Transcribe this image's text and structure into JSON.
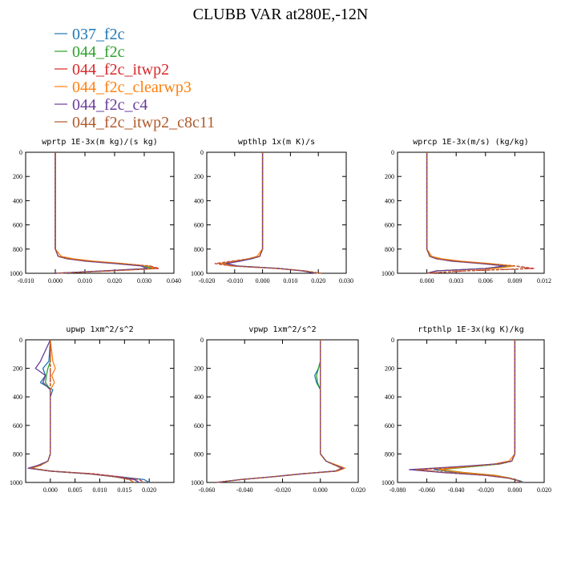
{
  "figure": {
    "title": "CLUBB VAR at280E,-12N",
    "legend": {
      "placement": "top-left",
      "entries": [
        {
          "label": "037_f2c",
          "color": "#1f77b4"
        },
        {
          "label": "044_f2c",
          "color": "#2ca02c"
        },
        {
          "label": "044_f2c_itwp2",
          "color": "#d62728"
        },
        {
          "label": "044_f2c_clearwp3",
          "color": "#ff7f0e"
        },
        {
          "label": "044_f2c_c4",
          "color": "#6a3d9a"
        },
        {
          "label": "044_f2c_itwp2_c8c11",
          "color": "#b05a2c"
        }
      ]
    }
  },
  "chart_data": [
    {
      "type": "line",
      "title": "wprtp  1E-3x(m kg)/(s kg)",
      "xlim": [
        -0.01,
        0.04
      ],
      "ylim": [
        0,
        1000
      ],
      "y_inverted": true,
      "xticks": [
        "-0.010",
        "0.000",
        "0.010",
        "0.020",
        "0.030",
        "0.040"
      ],
      "yticks": [
        "0",
        "200",
        "400",
        "600",
        "800",
        "1000"
      ],
      "y": [
        0,
        200,
        400,
        600,
        800,
        860,
        880,
        900,
        920,
        940,
        960,
        980,
        1000
      ],
      "series": [
        {
          "values": [
            0.0,
            0.0,
            0.0,
            0.0,
            0.0,
            0.001,
            0.005,
            0.012,
            0.022,
            0.031,
            0.033,
            0.018,
            0.0
          ]
        },
        {
          "values": [
            0.0,
            0.0,
            0.0,
            0.0,
            0.0,
            0.001,
            0.004,
            0.011,
            0.021,
            0.03,
            0.032,
            0.017,
            0.0
          ]
        },
        {
          "values": [
            0.0,
            0.0,
            0.0,
            0.0,
            0.0,
            0.001,
            0.004,
            0.011,
            0.022,
            0.032,
            0.035,
            0.019,
            0.0
          ]
        },
        {
          "values": [
            0.0,
            0.0,
            0.0,
            0.0,
            0.0,
            0.002,
            0.006,
            0.013,
            0.023,
            0.031,
            0.034,
            0.018,
            0.0
          ]
        },
        {
          "values": [
            0.0,
            0.0,
            0.0,
            0.0,
            0.0,
            0.001,
            0.004,
            0.01,
            0.02,
            0.029,
            0.031,
            0.016,
            0.0
          ]
        },
        {
          "values": [
            0.0,
            0.0,
            0.0,
            0.0,
            0.0,
            0.001,
            0.004,
            0.011,
            0.022,
            0.032,
            0.034,
            0.018,
            0.0
          ]
        }
      ]
    },
    {
      "type": "line",
      "title": "wpthlp  1x(m K)/s",
      "xlim": [
        -0.02,
        0.03
      ],
      "ylim": [
        0,
        1000
      ],
      "y_inverted": true,
      "xticks": [
        "-0.020",
        "-0.010",
        "0.000",
        "0.010",
        "0.020",
        "0.030"
      ],
      "yticks": [
        "0",
        "200",
        "400",
        "600",
        "800",
        "1000"
      ],
      "y": [
        0,
        200,
        400,
        600,
        800,
        860,
        880,
        900,
        920,
        940,
        960,
        980,
        1000
      ],
      "series": [
        {
          "values": [
            0.0,
            0.0,
            0.0,
            0.0,
            0.0,
            -0.001,
            -0.004,
            -0.009,
            -0.014,
            -0.01,
            0.006,
            0.015,
            0.02
          ]
        },
        {
          "values": [
            0.0,
            0.0,
            0.0,
            0.0,
            0.0,
            -0.001,
            -0.004,
            -0.009,
            -0.013,
            -0.009,
            0.006,
            0.015,
            0.02
          ]
        },
        {
          "values": [
            0.0,
            0.0,
            0.0,
            0.0,
            0.0,
            -0.001,
            -0.005,
            -0.011,
            -0.017,
            -0.011,
            0.005,
            0.015,
            0.021
          ]
        },
        {
          "values": [
            0.0,
            0.0,
            0.0,
            0.0,
            0.0,
            -0.002,
            -0.005,
            -0.01,
            -0.015,
            -0.01,
            0.006,
            0.015,
            0.02
          ]
        },
        {
          "values": [
            0.0,
            0.0,
            0.0,
            0.0,
            0.0,
            -0.001,
            -0.004,
            -0.008,
            -0.013,
            -0.009,
            0.006,
            0.014,
            0.019
          ]
        },
        {
          "values": [
            0.0,
            0.0,
            0.0,
            0.0,
            0.0,
            -0.001,
            -0.005,
            -0.01,
            -0.016,
            -0.011,
            0.005,
            0.015,
            0.021
          ]
        }
      ]
    },
    {
      "type": "line",
      "title": "wprcp  1E-3x(m/s) (kg/kg)",
      "xlim": [
        -0.003,
        0.012
      ],
      "ylim": [
        0,
        1000
      ],
      "y_inverted": true,
      "xticks": [
        "0.000",
        "0.003",
        "0.006",
        "0.009",
        "0.012"
      ],
      "yticks": [
        "0",
        "200",
        "400",
        "600",
        "800",
        "1000"
      ],
      "y": [
        0,
        200,
        400,
        600,
        800,
        860,
        880,
        900,
        920,
        940,
        960,
        980,
        1000
      ],
      "series": [
        {
          "values": [
            0.0,
            0.0,
            0.0,
            0.0,
            0.0,
            0.0003,
            0.001,
            0.003,
            0.006,
            0.008,
            0.006,
            0.001,
            0.0
          ]
        },
        {
          "values": [
            0.0,
            0.0,
            0.0,
            0.0,
            0.0,
            0.0003,
            0.001,
            0.003,
            0.006,
            0.0085,
            0.006,
            0.001,
            0.0
          ]
        },
        {
          "values": [
            0.0,
            0.0,
            0.0,
            0.0,
            0.0,
            0.0003,
            0.001,
            0.003,
            0.006,
            0.009,
            0.011,
            0.004,
            0.0
          ]
        },
        {
          "values": [
            0.0,
            0.0,
            0.0,
            0.0,
            0.0,
            0.0005,
            0.0015,
            0.0035,
            0.0065,
            0.009,
            0.007,
            0.001,
            0.0
          ]
        },
        {
          "values": [
            0.0,
            0.0,
            0.0,
            0.0,
            0.0,
            0.0003,
            0.001,
            0.0025,
            0.0055,
            0.008,
            0.006,
            0.001,
            0.0
          ]
        },
        {
          "values": [
            0.0,
            0.0,
            0.0,
            0.0,
            0.0,
            0.0003,
            0.001,
            0.003,
            0.006,
            0.009,
            0.0105,
            0.004,
            0.0
          ]
        }
      ]
    },
    {
      "type": "line",
      "title": "upwp  1xm^2/s^2",
      "xlim": [
        -0.005,
        0.025
      ],
      "ylim": [
        0,
        1000
      ],
      "y_inverted": true,
      "xticks": [
        "0.000",
        "0.005",
        "0.010",
        "0.015",
        "0.020"
      ],
      "yticks": [
        "0",
        "200",
        "400",
        "600",
        "800",
        "1000"
      ],
      "y": [
        0,
        150,
        200,
        250,
        300,
        350,
        400,
        600,
        800,
        850,
        880,
        900,
        920,
        940,
        960,
        980,
        1000
      ],
      "series": [
        {
          "values": [
            0.0,
            -0.0003,
            -0.0015,
            -0.001,
            -0.002,
            0.0005,
            0.0,
            0.0,
            0.0,
            -0.0005,
            -0.002,
            -0.004,
            0.0,
            0.008,
            0.014,
            0.019,
            0.02
          ]
        },
        {
          "values": [
            0.0,
            0.0,
            -0.0005,
            -0.0008,
            -0.001,
            0.0,
            0.0,
            0.0,
            0.0,
            -0.0005,
            -0.002,
            -0.004,
            0.0,
            0.008,
            0.013,
            0.017,
            0.018
          ]
        },
        {
          "values": [
            0.0,
            0.0,
            0.0,
            0.0,
            0.0,
            0.0,
            0.0,
            0.0,
            0.0,
            -0.0005,
            -0.002,
            -0.004,
            0.0,
            0.009,
            0.014,
            0.018,
            0.019
          ]
        },
        {
          "values": [
            0.0,
            0.0005,
            0.001,
            0.0003,
            0.0008,
            0.0,
            0.0,
            0.0,
            0.0,
            -0.0005,
            -0.002,
            -0.004,
            0.0,
            0.008,
            0.013,
            0.016,
            0.017
          ]
        },
        {
          "values": [
            0.0,
            -0.002,
            -0.003,
            -0.001,
            -0.0015,
            0.0,
            0.0,
            0.0,
            0.0,
            -0.0005,
            -0.0025,
            -0.0045,
            0.0,
            0.008,
            0.013,
            0.017,
            0.018
          ]
        },
        {
          "values": [
            0.0,
            0.0,
            0.0,
            0.0,
            0.0,
            0.0,
            0.0,
            0.0,
            0.0,
            -0.0005,
            -0.002,
            -0.004,
            0.0,
            0.008,
            0.013,
            0.016,
            0.017
          ]
        }
      ]
    },
    {
      "type": "line",
      "title": "vpwp  1xm^2/s^2",
      "xlim": [
        -0.06,
        0.02
      ],
      "ylim": [
        0,
        1000
      ],
      "y_inverted": true,
      "xticks": [
        "-0.060",
        "-0.040",
        "-0.020",
        "0.000",
        "0.020"
      ],
      "yticks": [
        "0",
        "200",
        "400",
        "600",
        "800",
        "1000"
      ],
      "y": [
        0,
        150,
        200,
        250,
        300,
        350,
        400,
        600,
        800,
        850,
        880,
        900,
        920,
        940,
        960,
        980,
        1000
      ],
      "series": [
        {
          "values": [
            0.0,
            0.0,
            -0.001,
            -0.003,
            -0.002,
            0.0,
            0.0,
            0.0,
            0.0,
            0.003,
            0.008,
            0.012,
            0.008,
            -0.01,
            -0.025,
            -0.042,
            -0.055
          ]
        },
        {
          "values": [
            0.0,
            0.0,
            -0.001,
            -0.002,
            -0.0015,
            0.0,
            0.0,
            0.0,
            0.0,
            0.003,
            0.008,
            0.012,
            0.008,
            -0.01,
            -0.025,
            -0.042,
            -0.055
          ]
        },
        {
          "values": [
            0.0,
            0.0,
            0.0,
            0.0,
            0.0,
            0.0,
            0.0,
            0.0,
            0.0,
            0.003,
            0.008,
            0.011,
            0.008,
            -0.01,
            -0.025,
            -0.042,
            -0.055
          ]
        },
        {
          "values": [
            0.0,
            0.0,
            0.0,
            0.0,
            0.0,
            0.0,
            0.0,
            0.0,
            0.0,
            0.003,
            0.009,
            0.013,
            0.009,
            -0.01,
            -0.025,
            -0.042,
            -0.055
          ]
        },
        {
          "values": [
            0.0,
            0.0,
            0.0,
            0.0,
            0.0,
            0.0,
            0.0,
            0.0,
            0.0,
            0.003,
            0.008,
            0.012,
            0.008,
            -0.01,
            -0.025,
            -0.042,
            -0.055
          ]
        },
        {
          "values": [
            0.0,
            0.0,
            0.0,
            0.0,
            0.0,
            0.0,
            0.0,
            0.0,
            0.0,
            0.003,
            0.008,
            0.011,
            0.008,
            -0.01,
            -0.025,
            -0.042,
            -0.055
          ]
        }
      ]
    },
    {
      "type": "line",
      "title": "rtpthlp  1E-3x(kg K)/kg",
      "xlim": [
        -0.08,
        0.02
      ],
      "ylim": [
        0,
        1000
      ],
      "y_inverted": true,
      "xticks": [
        "-0.080",
        "-0.060",
        "-0.040",
        "-0.020",
        "0.000",
        "0.020"
      ],
      "yticks": [
        "0",
        "200",
        "400",
        "600",
        "800",
        "1000"
      ],
      "y": [
        0,
        200,
        400,
        600,
        800,
        850,
        870,
        890,
        910,
        930,
        950,
        970,
        990,
        1000
      ],
      "series": [
        {
          "values": [
            0.0,
            0.0,
            0.0,
            0.0,
            0.0,
            -0.002,
            -0.01,
            -0.03,
            -0.055,
            -0.04,
            -0.015,
            -0.003,
            0.004,
            0.006
          ]
        },
        {
          "values": [
            0.0,
            0.0,
            0.0,
            0.0,
            0.0,
            -0.002,
            -0.01,
            -0.03,
            -0.05,
            -0.035,
            -0.013,
            -0.003,
            0.003,
            0.005
          ]
        },
        {
          "values": [
            0.0,
            0.0,
            0.0,
            0.0,
            0.0,
            -0.002,
            -0.011,
            -0.034,
            -0.065,
            -0.05,
            -0.02,
            -0.004,
            0.003,
            0.005
          ]
        },
        {
          "values": [
            0.0,
            0.0,
            0.0,
            0.0,
            0.0,
            -0.004,
            -0.014,
            -0.033,
            -0.052,
            -0.036,
            -0.014,
            -0.003,
            0.003,
            0.005
          ]
        },
        {
          "values": [
            0.0,
            0.0,
            0.0,
            0.0,
            0.0,
            -0.002,
            -0.012,
            -0.04,
            -0.072,
            -0.05,
            -0.02,
            -0.004,
            0.003,
            0.005
          ]
        },
        {
          "values": [
            0.0,
            0.0,
            0.0,
            0.0,
            0.0,
            -0.002,
            -0.011,
            -0.035,
            -0.068,
            -0.045,
            -0.018,
            -0.004,
            0.003,
            0.005
          ]
        }
      ]
    }
  ]
}
